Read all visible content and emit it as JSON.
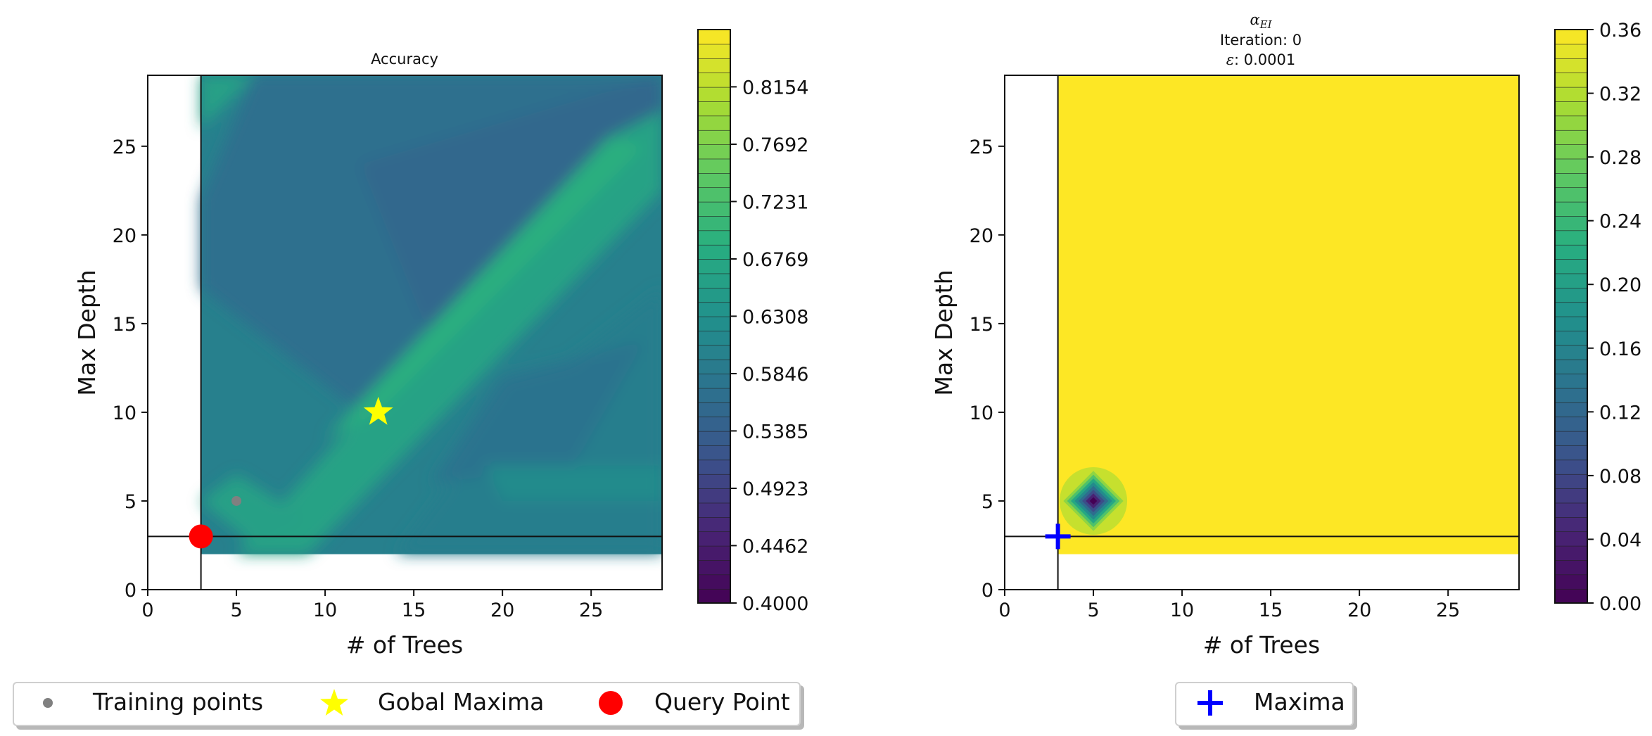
{
  "chart_data": [
    {
      "type": "heatmap",
      "title": "Accuracy",
      "xlabel": "# of Trees",
      "ylabel": "Max Depth",
      "xlim": [
        0,
        29
      ],
      "ylim": [
        0,
        29
      ],
      "xticks": [
        0,
        5,
        10,
        15,
        20,
        25
      ],
      "yticks": [
        0,
        5,
        10,
        15,
        20,
        25
      ],
      "grid": false,
      "colormap": "viridis",
      "colorbar": {
        "min": 0.4,
        "max": 0.8615,
        "tick_labels": [
          "0.4000",
          "0.4462",
          "0.4923",
          "0.5385",
          "0.5846",
          "0.6308",
          "0.6769",
          "0.7231",
          "0.7692",
          "0.8154"
        ]
      },
      "field_extent": {
        "x": [
          3,
          29
        ],
        "y": [
          2,
          29
        ]
      },
      "crosshair": {
        "x": 3,
        "y": 3
      },
      "series": [
        {
          "name": "Training points",
          "marker": "circle",
          "color": "#808080",
          "points": [
            [
              5,
              5
            ]
          ]
        },
        {
          "name": "Gobal Maxima",
          "marker": "star",
          "color": "#ffff00",
          "points": [
            [
              13,
              10
            ]
          ]
        },
        {
          "name": "Query Point",
          "marker": "circle",
          "color": "#ff0000",
          "points": [
            [
              3,
              3
            ]
          ]
        }
      ],
      "legend": {
        "placement": "bottom",
        "entries": [
          "Training points",
          "Gobal Maxima",
          "Query Point"
        ]
      }
    },
    {
      "type": "heatmap",
      "title_lines": [
        "αEI",
        "Iteration: 0",
        "ε: 0.0001"
      ],
      "title_symbol": "α",
      "title_subscript": "EI",
      "title_iteration": "Iteration: 0",
      "title_epsilon_symbol": "ε",
      "title_epsilon_value": ": 0.0001",
      "xlabel": "# of Trees",
      "ylabel": "Max Depth",
      "xlim": [
        0,
        29
      ],
      "ylim": [
        0,
        29
      ],
      "xticks": [
        0,
        5,
        10,
        15,
        20,
        25
      ],
      "yticks": [
        0,
        5,
        10,
        15,
        20,
        25
      ],
      "grid": false,
      "colormap": "viridis",
      "colorbar": {
        "min": 0.0,
        "max": 0.36,
        "tick_labels": [
          "0.00",
          "0.04",
          "0.08",
          "0.12",
          "0.16",
          "0.20",
          "0.24",
          "0.28",
          "0.32",
          "0.36"
        ]
      },
      "field_extent": {
        "x": [
          3,
          29
        ],
        "y": [
          2,
          29
        ]
      },
      "crosshair": {
        "x": 3,
        "y": 3
      },
      "field_value": 0.36,
      "dip_center": [
        5,
        5
      ],
      "dip_min": 0.0,
      "series": [
        {
          "name": "Maxima",
          "marker": "plus",
          "color": "#0000ff",
          "points": [
            [
              3,
              3
            ]
          ]
        }
      ],
      "legend": {
        "placement": "bottom",
        "entries": [
          "Maxima"
        ]
      }
    }
  ]
}
